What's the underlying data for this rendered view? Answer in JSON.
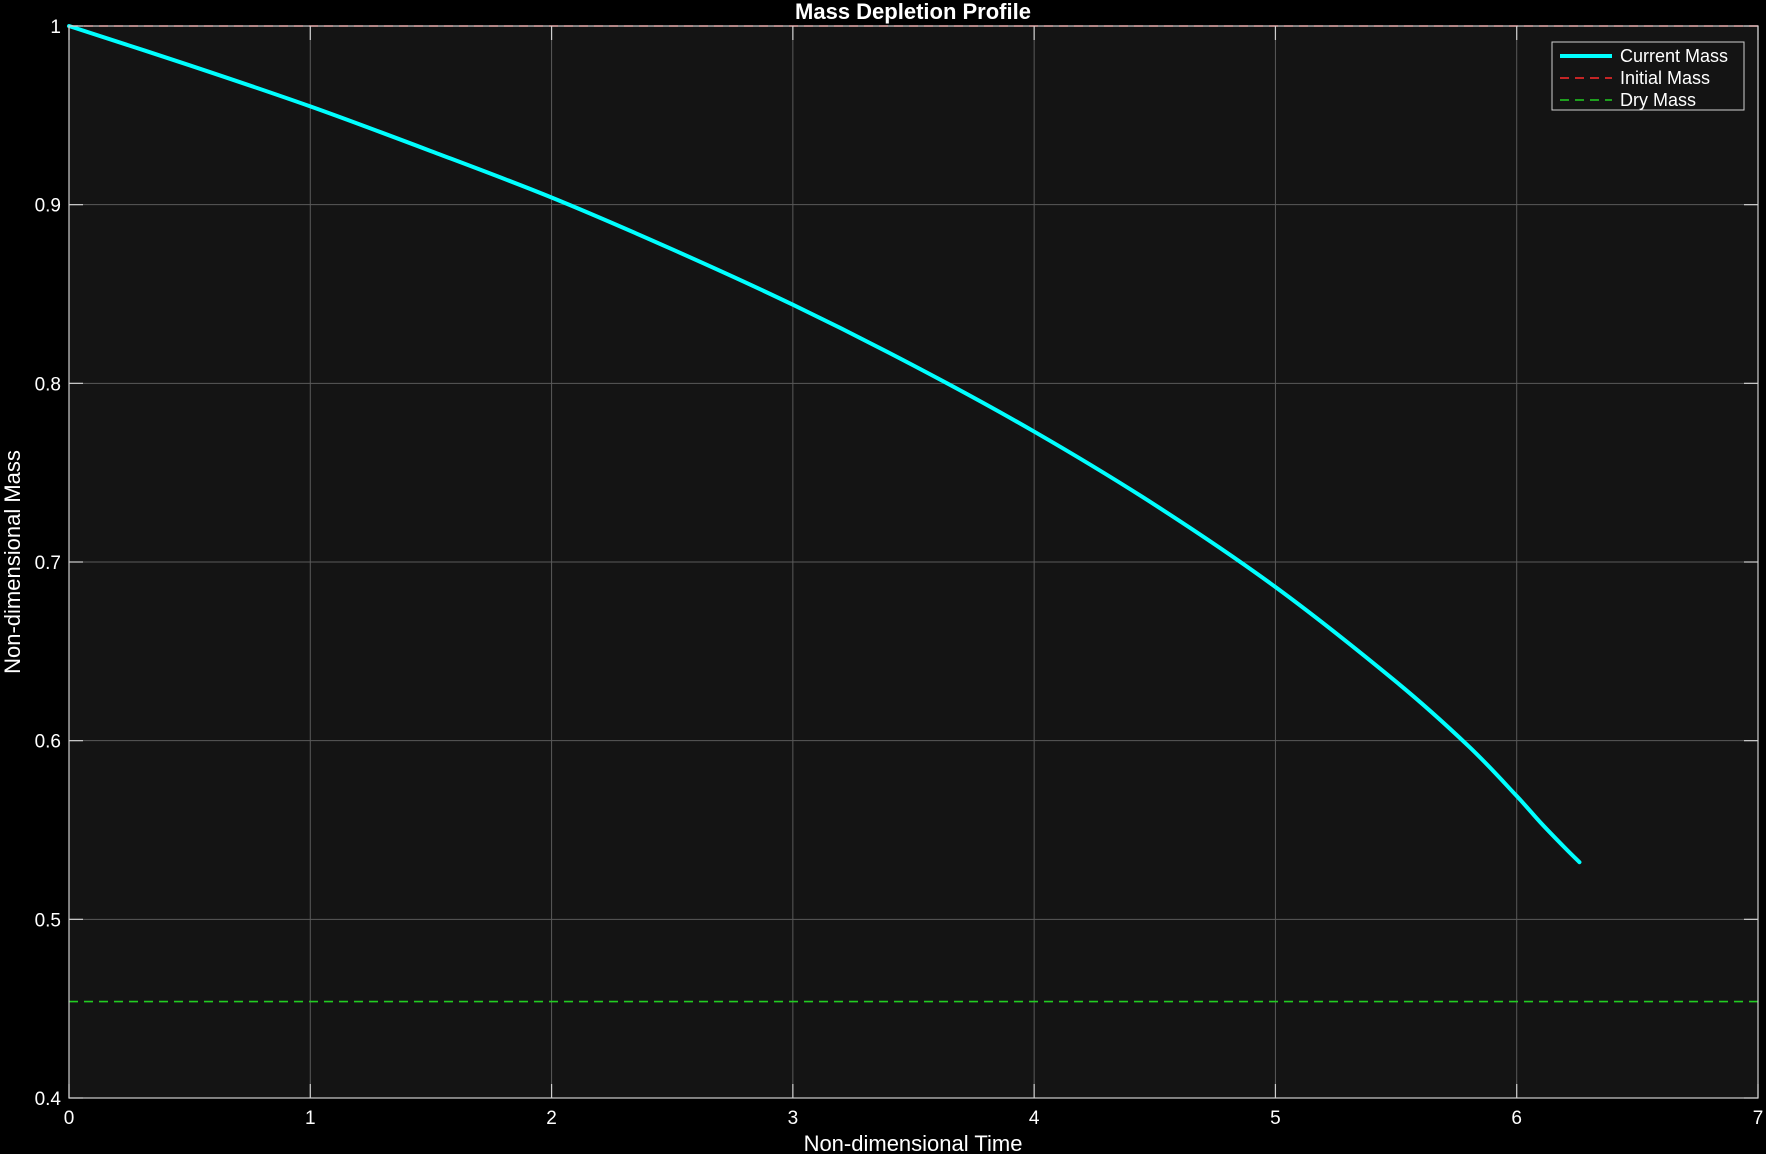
{
  "chart_data": {
    "type": "line",
    "title": "Mass Depletion Profile",
    "xlabel": "Non-dimensional Time",
    "ylabel": "Non-dimensional Mass",
    "xlim": [
      0,
      7
    ],
    "ylim": [
      0.4,
      1.0
    ],
    "xticks": [
      "0",
      "1",
      "2",
      "3",
      "4",
      "5",
      "6",
      "7"
    ],
    "yticks": [
      "0.4",
      "0.5",
      "0.6",
      "0.7",
      "0.8",
      "0.9",
      "1"
    ],
    "grid": true,
    "legend_position": "top-right",
    "background_color": "#141414",
    "series": [
      {
        "name": "Current Mass",
        "color": "#00ffff",
        "style": "solid",
        "x": [
          0,
          0.5,
          1,
          1.5,
          2,
          2.5,
          3,
          3.5,
          4,
          4.5,
          5,
          5.5,
          5.8,
          6,
          6.1,
          6.2,
          6.26
        ],
        "y": [
          1.0,
          0.978,
          0.955,
          0.93,
          0.904,
          0.875,
          0.844,
          0.81,
          0.773,
          0.732,
          0.686,
          0.633,
          0.597,
          0.569,
          0.554,
          0.54,
          0.532
        ]
      },
      {
        "name": "Initial Mass",
        "color": "#ff2b2b",
        "style": "dashed",
        "x": [
          0,
          7
        ],
        "y": [
          1.0,
          1.0
        ]
      },
      {
        "name": "Dry Mass",
        "color": "#22cc22",
        "style": "dashed",
        "x": [
          0,
          7
        ],
        "y": [
          0.454,
          0.454
        ]
      }
    ]
  }
}
